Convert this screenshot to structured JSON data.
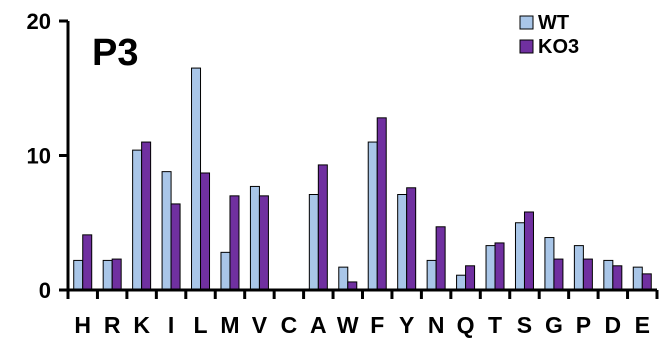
{
  "chart_data": {
    "type": "bar",
    "title": "P3",
    "categories": [
      "H",
      "R",
      "K",
      "I",
      "L",
      "M",
      "V",
      "C",
      "A",
      "W",
      "F",
      "Y",
      "N",
      "Q",
      "T",
      "S",
      "G",
      "P",
      "D",
      "E"
    ],
    "series": [
      {
        "name": "WT",
        "color": "#a9c6e8",
        "values": [
          2.2,
          2.2,
          10.4,
          8.8,
          16.5,
          2.8,
          7.7,
          0,
          7.1,
          1.7,
          11.0,
          7.1,
          2.2,
          1.1,
          3.3,
          5.0,
          3.9,
          3.3,
          2.2,
          1.7
        ]
      },
      {
        "name": "KO3",
        "color": "#7030a0",
        "values": [
          4.1,
          2.3,
          11.0,
          6.4,
          8.7,
          7.0,
          7.0,
          0,
          9.3,
          0.6,
          12.8,
          7.6,
          4.7,
          1.8,
          3.5,
          5.8,
          2.3,
          2.3,
          1.8,
          1.2
        ]
      }
    ],
    "y_ticks": [
      "0",
      "10",
      "20"
    ],
    "ylim": [
      0,
      20
    ],
    "legend_position": "top-right",
    "grid": false
  }
}
